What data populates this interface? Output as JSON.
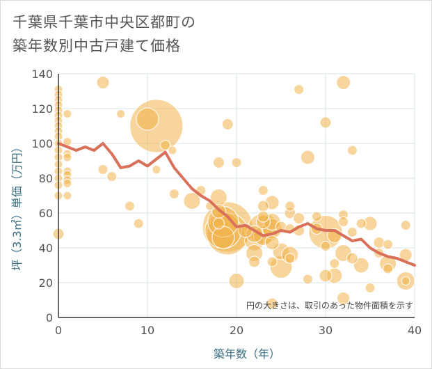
{
  "title_lines": [
    "千葉県千葉市中央区都町の",
    "築年数別中古戸建て価格"
  ],
  "colors": {
    "bubble": "#f0b24a",
    "bubble_fill_opacity": 0.55,
    "line": "#d9705a",
    "grid": "#d6e4ea",
    "axis": "#333333",
    "axis_title": "#3a6e82"
  },
  "chart_data": {
    "type": "scatter",
    "title": "千葉県千葉市中央区都町の築年数別中古戸建て価格",
    "xlabel": "築年数（年）",
    "ylabel": "坪（3.3㎡）単価（万円）",
    "xlim": [
      0,
      40
    ],
    "ylim": [
      0,
      140
    ],
    "xticks": [
      0,
      10,
      20,
      30,
      40
    ],
    "yticks": [
      0,
      20,
      40,
      60,
      80,
      100,
      120,
      140
    ],
    "grid": true,
    "note": "円の大きさは、取引のあった物件面積を示す",
    "series": [
      {
        "type": "bubble",
        "points": [
          {
            "x": 0,
            "y": 131,
            "s": 6
          },
          {
            "x": 0,
            "y": 128,
            "s": 6
          },
          {
            "x": 0,
            "y": 125,
            "s": 6
          },
          {
            "x": 0,
            "y": 122,
            "s": 6
          },
          {
            "x": 0,
            "y": 119,
            "s": 6
          },
          {
            "x": 0,
            "y": 116,
            "s": 6
          },
          {
            "x": 0,
            "y": 113,
            "s": 6
          },
          {
            "x": 0,
            "y": 110,
            "s": 6
          },
          {
            "x": 0,
            "y": 107,
            "s": 6
          },
          {
            "x": 0,
            "y": 104,
            "s": 6
          },
          {
            "x": 0,
            "y": 100,
            "s": 6
          },
          {
            "x": 0,
            "y": 96,
            "s": 6
          },
          {
            "x": 0,
            "y": 92,
            "s": 6
          },
          {
            "x": 0,
            "y": 88,
            "s": 6
          },
          {
            "x": 0,
            "y": 84,
            "s": 6
          },
          {
            "x": 0,
            "y": 80,
            "s": 6
          },
          {
            "x": 0,
            "y": 76,
            "s": 6
          },
          {
            "x": 0,
            "y": 70,
            "s": 6
          },
          {
            "x": 0,
            "y": 48,
            "s": 8
          },
          {
            "x": 1,
            "y": 117,
            "s": 6
          },
          {
            "x": 1,
            "y": 101,
            "s": 6
          },
          {
            "x": 1,
            "y": 94,
            "s": 6
          },
          {
            "x": 1,
            "y": 92,
            "s": 6
          },
          {
            "x": 1,
            "y": 84,
            "s": 6
          },
          {
            "x": 1,
            "y": 82,
            "s": 6
          },
          {
            "x": 1,
            "y": 79,
            "s": 6
          },
          {
            "x": 1,
            "y": 77,
            "s": 6
          },
          {
            "x": 1,
            "y": 70,
            "s": 6
          },
          {
            "x": 5,
            "y": 135,
            "s": 9
          },
          {
            "x": 5,
            "y": 85,
            "s": 7
          },
          {
            "x": 6,
            "y": 81,
            "s": 7
          },
          {
            "x": 7,
            "y": 117,
            "s": 6
          },
          {
            "x": 8,
            "y": 64,
            "s": 7
          },
          {
            "x": 9,
            "y": 54,
            "s": 7
          },
          {
            "x": 10,
            "y": 114,
            "s": 16
          },
          {
            "x": 11,
            "y": 110,
            "s": 38
          },
          {
            "x": 11,
            "y": 85,
            "s": 6
          },
          {
            "x": 12,
            "y": 99,
            "s": 7
          },
          {
            "x": 12.8,
            "y": 96,
            "s": 6
          },
          {
            "x": 13,
            "y": 71,
            "s": 7
          },
          {
            "x": 15,
            "y": 67,
            "s": 12
          },
          {
            "x": 16,
            "y": 73,
            "s": 7
          },
          {
            "x": 17,
            "y": 64,
            "s": 6
          },
          {
            "x": 18,
            "y": 89,
            "s": 8
          },
          {
            "x": 18,
            "y": 69,
            "s": 12
          },
          {
            "x": 18,
            "y": 61,
            "s": 10
          },
          {
            "x": 18.5,
            "y": 55,
            "s": 22
          },
          {
            "x": 18.5,
            "y": 50,
            "s": 26
          },
          {
            "x": 18.5,
            "y": 46,
            "s": 16
          },
          {
            "x": 19,
            "y": 52,
            "s": 36
          },
          {
            "x": 19,
            "y": 48,
            "s": 30
          },
          {
            "x": 18,
            "y": 54,
            "s": 8
          },
          {
            "x": 19,
            "y": 111,
            "s": 8
          },
          {
            "x": 20,
            "y": 89,
            "s": 7
          },
          {
            "x": 20,
            "y": 21,
            "s": 11
          },
          {
            "x": 21,
            "y": 50,
            "s": 10
          },
          {
            "x": 22,
            "y": 48,
            "s": 12
          },
          {
            "x": 22,
            "y": 44,
            "s": 14
          },
          {
            "x": 22,
            "y": 37,
            "s": 12
          },
          {
            "x": 22,
            "y": 32,
            "s": 8
          },
          {
            "x": 23,
            "y": 73,
            "s": 7
          },
          {
            "x": 23,
            "y": 64,
            "s": 8
          },
          {
            "x": 23,
            "y": 58,
            "s": 8
          },
          {
            "x": 23,
            "y": 55,
            "s": 10
          },
          {
            "x": 23,
            "y": 51,
            "s": 22
          },
          {
            "x": 23,
            "y": 47,
            "s": 14
          },
          {
            "x": 24,
            "y": 66,
            "s": 10
          },
          {
            "x": 24,
            "y": 55,
            "s": 12
          },
          {
            "x": 24,
            "y": 51,
            "s": 14
          },
          {
            "x": 24,
            "y": 43,
            "s": 10
          },
          {
            "x": 24,
            "y": 32,
            "s": 7
          },
          {
            "x": 24,
            "y": 8,
            "s": 8
          },
          {
            "x": 25,
            "y": 52,
            "s": 8
          },
          {
            "x": 25,
            "y": 38,
            "s": 12
          },
          {
            "x": 25,
            "y": 29,
            "s": 16
          },
          {
            "x": 26,
            "y": 64,
            "s": 7
          },
          {
            "x": 26,
            "y": 60,
            "s": 8
          },
          {
            "x": 26,
            "y": 51,
            "s": 7
          },
          {
            "x": 26,
            "y": 36,
            "s": 12
          },
          {
            "x": 26,
            "y": 34,
            "s": 7
          },
          {
            "x": 27,
            "y": 131,
            "s": 7
          },
          {
            "x": 27,
            "y": 57,
            "s": 8
          },
          {
            "x": 27,
            "y": 50,
            "s": 8
          },
          {
            "x": 28,
            "y": 92,
            "s": 10
          },
          {
            "x": 28,
            "y": 22,
            "s": 7
          },
          {
            "x": 29,
            "y": 58,
            "s": 7
          },
          {
            "x": 29,
            "y": 51,
            "s": 8
          },
          {
            "x": 30,
            "y": 112,
            "s": 8
          },
          {
            "x": 30,
            "y": 49,
            "s": 24
          },
          {
            "x": 30,
            "y": 41,
            "s": 7
          },
          {
            "x": 30,
            "y": 24,
            "s": 9
          },
          {
            "x": 31,
            "y": 47,
            "s": 10
          },
          {
            "x": 31,
            "y": 31,
            "s": 7
          },
          {
            "x": 31,
            "y": 24,
            "s": 11
          },
          {
            "x": 32,
            "y": 135,
            "s": 10
          },
          {
            "x": 32,
            "y": 59,
            "s": 7
          },
          {
            "x": 32,
            "y": 55,
            "s": 7
          },
          {
            "x": 32,
            "y": 37,
            "s": 12
          },
          {
            "x": 32,
            "y": 11,
            "s": 9
          },
          {
            "x": 33,
            "y": 96,
            "s": 7
          },
          {
            "x": 33,
            "y": 49,
            "s": 7
          },
          {
            "x": 33,
            "y": 34,
            "s": 8
          },
          {
            "x": 34,
            "y": 54,
            "s": 7
          },
          {
            "x": 34,
            "y": 30,
            "s": 11
          },
          {
            "x": 35,
            "y": 54,
            "s": 10
          },
          {
            "x": 35,
            "y": 17,
            "s": 7
          },
          {
            "x": 36,
            "y": 43,
            "s": 8
          },
          {
            "x": 36,
            "y": 37,
            "s": 7
          },
          {
            "x": 37,
            "y": 42,
            "s": 7
          },
          {
            "x": 37,
            "y": 31,
            "s": 12
          },
          {
            "x": 37,
            "y": 28,
            "s": 7
          },
          {
            "x": 39,
            "y": 53,
            "s": 7
          },
          {
            "x": 39,
            "y": 36,
            "s": 9
          },
          {
            "x": 39,
            "y": 21,
            "s": 13
          },
          {
            "x": 39,
            "y": 21,
            "s": 6
          }
        ]
      },
      {
        "type": "line",
        "x": [
          0,
          1,
          2,
          3,
          4,
          5,
          6,
          7,
          8,
          9,
          10,
          11,
          12,
          13,
          14,
          15,
          16,
          17,
          18,
          19,
          20,
          21,
          22,
          23,
          24,
          25,
          26,
          27,
          28,
          29,
          30,
          31,
          32,
          33,
          34,
          35,
          36,
          37,
          38,
          39,
          40
        ],
        "y": [
          100,
          98,
          96,
          98,
          96,
          100,
          94,
          86,
          87,
          90,
          87,
          91,
          95,
          86,
          80,
          74,
          70,
          67,
          62,
          58,
          52,
          53,
          50,
          47,
          48,
          50,
          49,
          52,
          54,
          51,
          50,
          50,
          47,
          44,
          45,
          40,
          37,
          35,
          34,
          32,
          30
        ]
      }
    ]
  }
}
